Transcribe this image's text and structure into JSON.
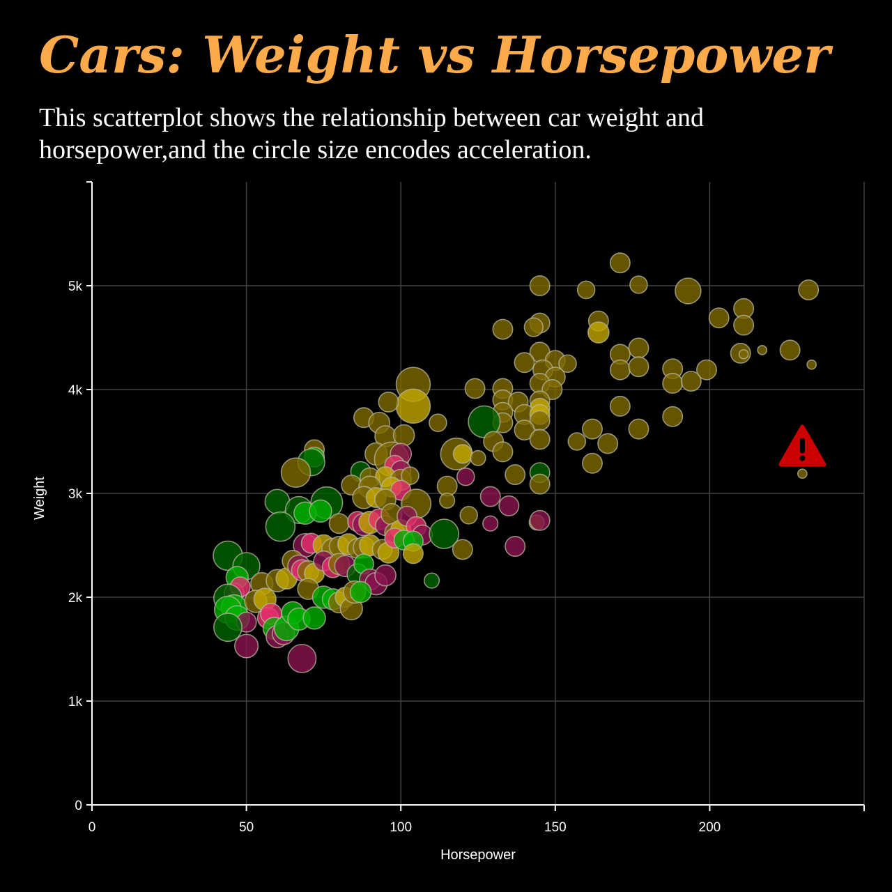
{
  "chart_data": {
    "type": "scatter",
    "title": "Cars: Weight vs Horsepower",
    "subtitle": "This scatterplot shows the relationship between car weight and horsepower,and the circle size encodes acceleration.",
    "xlabel": "Horsepower",
    "ylabel": "Weight",
    "xlim": [
      0,
      250
    ],
    "ylim": [
      0,
      6000
    ],
    "x_ticks": [
      {
        "v": 0,
        "label": "0"
      },
      {
        "v": 50,
        "label": "50"
      },
      {
        "v": 100,
        "label": "100"
      },
      {
        "v": 150,
        "label": "150"
      },
      {
        "v": 200,
        "label": "200"
      }
    ],
    "y_ticks": [
      {
        "v": 0,
        "label": "0"
      },
      {
        "v": 1000,
        "label": "1k"
      },
      {
        "v": 2000,
        "label": "2k"
      },
      {
        "v": 3000,
        "label": "3k"
      },
      {
        "v": 4000,
        "label": "4k"
      },
      {
        "v": 5000,
        "label": "5k"
      }
    ],
    "grid": true,
    "size_encoding": "acceleration",
    "colors": {
      "olive": "#806a00",
      "gold": "#c4a800",
      "darkgreen": "#006400",
      "green": "#00b000",
      "maroon": "#8b1450",
      "pink": "#e8306e",
      "stroke": "#b8b8a0",
      "warning": "#cc0000"
    },
    "points": [
      {
        "x": 171,
        "y": 5220,
        "a": 12,
        "c": "olive"
      },
      {
        "x": 145,
        "y": 5000,
        "a": 12,
        "c": "olive"
      },
      {
        "x": 160,
        "y": 4960,
        "a": 10,
        "c": "olive"
      },
      {
        "x": 177,
        "y": 5010,
        "a": 10,
        "c": "olive"
      },
      {
        "x": 193,
        "y": 4950,
        "a": 17,
        "c": "olive"
      },
      {
        "x": 232,
        "y": 4960,
        "a": 12,
        "c": "olive"
      },
      {
        "x": 211,
        "y": 4780,
        "a": 12,
        "c": "olive"
      },
      {
        "x": 203,
        "y": 4690,
        "a": 12,
        "c": "olive"
      },
      {
        "x": 211,
        "y": 4620,
        "a": 12,
        "c": "olive"
      },
      {
        "x": 164,
        "y": 4660,
        "a": 12,
        "c": "olive"
      },
      {
        "x": 145,
        "y": 4640,
        "a": 12,
        "c": "olive"
      },
      {
        "x": 143,
        "y": 4600,
        "a": 11,
        "c": "olive"
      },
      {
        "x": 133,
        "y": 4580,
        "a": 12,
        "c": "olive"
      },
      {
        "x": 164,
        "y": 4550,
        "a": 13,
        "c": "gold"
      },
      {
        "x": 177,
        "y": 4400,
        "a": 12,
        "c": "olive"
      },
      {
        "x": 171,
        "y": 4340,
        "a": 12,
        "c": "olive"
      },
      {
        "x": 210,
        "y": 4350,
        "a": 12,
        "c": "olive"
      },
      {
        "x": 226,
        "y": 4380,
        "a": 12,
        "c": "olive"
      },
      {
        "x": 211,
        "y": 4340,
        "a": 3,
        "c": "olive"
      },
      {
        "x": 217,
        "y": 4380,
        "a": 3,
        "c": "olive"
      },
      {
        "x": 233,
        "y": 4240,
        "a": 3,
        "c": "olive"
      },
      {
        "x": 145,
        "y": 4360,
        "a": 12,
        "c": "olive"
      },
      {
        "x": 150,
        "y": 4280,
        "a": 12,
        "c": "olive"
      },
      {
        "x": 154,
        "y": 4250,
        "a": 10,
        "c": "olive"
      },
      {
        "x": 140,
        "y": 4260,
        "a": 12,
        "c": "olive"
      },
      {
        "x": 171,
        "y": 4190,
        "a": 12,
        "c": "olive"
      },
      {
        "x": 177,
        "y": 4220,
        "a": 12,
        "c": "olive"
      },
      {
        "x": 188,
        "y": 4200,
        "a": 12,
        "c": "olive"
      },
      {
        "x": 199,
        "y": 4190,
        "a": 12,
        "c": "olive"
      },
      {
        "x": 146,
        "y": 4190,
        "a": 12,
        "c": "olive"
      },
      {
        "x": 150,
        "y": 4120,
        "a": 12,
        "c": "olive"
      },
      {
        "x": 145,
        "y": 4060,
        "a": 12,
        "c": "olive"
      },
      {
        "x": 149,
        "y": 4000,
        "a": 12,
        "c": "olive"
      },
      {
        "x": 188,
        "y": 4060,
        "a": 12,
        "c": "olive"
      },
      {
        "x": 194,
        "y": 4080,
        "a": 12,
        "c": "olive"
      },
      {
        "x": 124,
        "y": 4010,
        "a": 12,
        "c": "olive"
      },
      {
        "x": 133,
        "y": 4010,
        "a": 12,
        "c": "olive"
      },
      {
        "x": 104,
        "y": 4050,
        "a": 24,
        "c": "olive"
      },
      {
        "x": 104,
        "y": 3840,
        "a": 24,
        "c": "gold"
      },
      {
        "x": 96,
        "y": 3880,
        "a": 12,
        "c": "olive"
      },
      {
        "x": 133,
        "y": 3900,
        "a": 12,
        "c": "olive"
      },
      {
        "x": 138,
        "y": 3880,
        "a": 12,
        "c": "olive"
      },
      {
        "x": 145,
        "y": 3890,
        "a": 12,
        "c": "olive"
      },
      {
        "x": 145,
        "y": 3820,
        "a": 12,
        "c": "gold"
      },
      {
        "x": 133,
        "y": 3780,
        "a": 12,
        "c": "olive"
      },
      {
        "x": 140,
        "y": 3760,
        "a": 12,
        "c": "olive"
      },
      {
        "x": 145,
        "y": 3760,
        "a": 12,
        "c": "gold"
      },
      {
        "x": 171,
        "y": 3840,
        "a": 12,
        "c": "olive"
      },
      {
        "x": 145,
        "y": 3700,
        "a": 12,
        "c": "olive"
      },
      {
        "x": 140,
        "y": 3610,
        "a": 12,
        "c": "olive"
      },
      {
        "x": 133,
        "y": 3680,
        "a": 12,
        "c": "olive"
      },
      {
        "x": 127,
        "y": 3690,
        "a": 22,
        "c": "darkgreen"
      },
      {
        "x": 112,
        "y": 3680,
        "a": 10,
        "c": "olive"
      },
      {
        "x": 88,
        "y": 3730,
        "a": 12,
        "c": "olive"
      },
      {
        "x": 93,
        "y": 3680,
        "a": 13,
        "c": "olive"
      },
      {
        "x": 95,
        "y": 3550,
        "a": 13,
        "c": "olive"
      },
      {
        "x": 101,
        "y": 3560,
        "a": 13,
        "c": "olive"
      },
      {
        "x": 177,
        "y": 3620,
        "a": 12,
        "c": "olive"
      },
      {
        "x": 188,
        "y": 3740,
        "a": 12,
        "c": "olive"
      },
      {
        "x": 162,
        "y": 3620,
        "a": 12,
        "c": "olive"
      },
      {
        "x": 157,
        "y": 3500,
        "a": 10,
        "c": "olive"
      },
      {
        "x": 167,
        "y": 3480,
        "a": 12,
        "c": "olive"
      },
      {
        "x": 145,
        "y": 3520,
        "a": 12,
        "c": "olive"
      },
      {
        "x": 130,
        "y": 3500,
        "a": 12,
        "c": "olive"
      },
      {
        "x": 133,
        "y": 3400,
        "a": 12,
        "c": "olive"
      },
      {
        "x": 118,
        "y": 3380,
        "a": 22,
        "c": "olive"
      },
      {
        "x": 120,
        "y": 3380,
        "a": 11,
        "c": "gold"
      },
      {
        "x": 125,
        "y": 3340,
        "a": 8,
        "c": "olive"
      },
      {
        "x": 162,
        "y": 3290,
        "a": 12,
        "c": "olive"
      },
      {
        "x": 72,
        "y": 3420,
        "a": 12,
        "c": "olive"
      },
      {
        "x": 72,
        "y": 3350,
        "a": 12,
        "c": "green"
      },
      {
        "x": 71,
        "y": 3300,
        "a": 18,
        "c": "darkgreen"
      },
      {
        "x": 66,
        "y": 3200,
        "a": 20,
        "c": "olive"
      },
      {
        "x": 92,
        "y": 3380,
        "a": 14,
        "c": "olive"
      },
      {
        "x": 97,
        "y": 3330,
        "a": 24,
        "c": "olive"
      },
      {
        "x": 100,
        "y": 3380,
        "a": 13,
        "c": "maroon"
      },
      {
        "x": 98,
        "y": 3270,
        "a": 12,
        "c": "pink"
      },
      {
        "x": 100,
        "y": 3220,
        "a": 12,
        "c": "maroon"
      },
      {
        "x": 87,
        "y": 3210,
        "a": 12,
        "c": "darkgreen"
      },
      {
        "x": 90,
        "y": 3150,
        "a": 12,
        "c": "olive"
      },
      {
        "x": 95,
        "y": 3160,
        "a": 12,
        "c": "gold"
      },
      {
        "x": 100,
        "y": 3130,
        "a": 13,
        "c": "olive"
      },
      {
        "x": 103,
        "y": 3170,
        "a": 10,
        "c": "olive"
      },
      {
        "x": 137,
        "y": 3180,
        "a": 12,
        "c": "olive"
      },
      {
        "x": 145,
        "y": 3200,
        "a": 12,
        "c": "darkgreen"
      },
      {
        "x": 145,
        "y": 3090,
        "a": 12,
        "c": "olive"
      },
      {
        "x": 115,
        "y": 3070,
        "a": 12,
        "c": "olive"
      },
      {
        "x": 121,
        "y": 3160,
        "a": 10,
        "c": "maroon"
      },
      {
        "x": 84,
        "y": 3080,
        "a": 12,
        "c": "olive"
      },
      {
        "x": 90,
        "y": 3060,
        "a": 14,
        "c": "olive"
      },
      {
        "x": 97,
        "y": 3060,
        "a": 12,
        "c": "gold"
      },
      {
        "x": 100,
        "y": 3030,
        "a": 12,
        "c": "pink"
      },
      {
        "x": 88,
        "y": 2960,
        "a": 14,
        "c": "olive"
      },
      {
        "x": 92,
        "y": 2960,
        "a": 12,
        "c": "gold"
      },
      {
        "x": 95,
        "y": 2940,
        "a": 13,
        "c": "olive"
      },
      {
        "x": 105,
        "y": 2900,
        "a": 20,
        "c": "olive"
      },
      {
        "x": 115,
        "y": 2930,
        "a": 8,
        "c": "olive"
      },
      {
        "x": 129,
        "y": 2970,
        "a": 12,
        "c": "maroon"
      },
      {
        "x": 135,
        "y": 2880,
        "a": 12,
        "c": "maroon"
      },
      {
        "x": 76,
        "y": 2910,
        "a": 22,
        "c": "darkgreen"
      },
      {
        "x": 60,
        "y": 2920,
        "a": 16,
        "c": "darkgreen"
      },
      {
        "x": 67,
        "y": 2840,
        "a": 18,
        "c": "darkgreen"
      },
      {
        "x": 69,
        "y": 2810,
        "a": 14,
        "c": "green"
      },
      {
        "x": 74,
        "y": 2830,
        "a": 14,
        "c": "green"
      },
      {
        "x": 61,
        "y": 2680,
        "a": 20,
        "c": "darkgreen"
      },
      {
        "x": 80,
        "y": 2710,
        "a": 12,
        "c": "olive"
      },
      {
        "x": 86,
        "y": 2730,
        "a": 12,
        "c": "pink"
      },
      {
        "x": 88,
        "y": 2700,
        "a": 14,
        "c": "maroon"
      },
      {
        "x": 90,
        "y": 2720,
        "a": 14,
        "c": "gold"
      },
      {
        "x": 93,
        "y": 2750,
        "a": 13,
        "c": "pink"
      },
      {
        "x": 95,
        "y": 2690,
        "a": 12,
        "c": "maroon"
      },
      {
        "x": 97,
        "y": 2800,
        "a": 13,
        "c": "olive"
      },
      {
        "x": 98,
        "y": 2620,
        "a": 12,
        "c": "olive"
      },
      {
        "x": 100,
        "y": 2650,
        "a": 12,
        "c": "gold"
      },
      {
        "x": 102,
        "y": 2780,
        "a": 12,
        "c": "maroon"
      },
      {
        "x": 105,
        "y": 2680,
        "a": 12,
        "c": "pink"
      },
      {
        "x": 107,
        "y": 2600,
        "a": 12,
        "c": "maroon"
      },
      {
        "x": 114,
        "y": 2610,
        "a": 20,
        "c": "darkgreen"
      },
      {
        "x": 122,
        "y": 2790,
        "a": 10,
        "c": "olive"
      },
      {
        "x": 129,
        "y": 2710,
        "a": 8,
        "c": "maroon"
      },
      {
        "x": 144,
        "y": 2720,
        "a": 8,
        "c": "olive"
      },
      {
        "x": 145,
        "y": 2740,
        "a": 12,
        "c": "maroon"
      },
      {
        "x": 69,
        "y": 2500,
        "a": 15,
        "c": "maroon"
      },
      {
        "x": 71,
        "y": 2520,
        "a": 12,
        "c": "pink"
      },
      {
        "x": 75,
        "y": 2500,
        "a": 13,
        "c": "gold"
      },
      {
        "x": 78,
        "y": 2460,
        "a": 14,
        "c": "olive"
      },
      {
        "x": 80,
        "y": 2490,
        "a": 12,
        "c": "olive"
      },
      {
        "x": 83,
        "y": 2510,
        "a": 13,
        "c": "gold"
      },
      {
        "x": 86,
        "y": 2470,
        "a": 12,
        "c": "olive"
      },
      {
        "x": 88,
        "y": 2480,
        "a": 13,
        "c": "olive"
      },
      {
        "x": 90,
        "y": 2500,
        "a": 13,
        "c": "gold"
      },
      {
        "x": 94,
        "y": 2460,
        "a": 12,
        "c": "olive"
      },
      {
        "x": 96,
        "y": 2430,
        "a": 13,
        "c": "gold"
      },
      {
        "x": 98,
        "y": 2570,
        "a": 12,
        "c": "pink"
      },
      {
        "x": 101,
        "y": 2550,
        "a": 12,
        "c": "green"
      },
      {
        "x": 104,
        "y": 2540,
        "a": 12,
        "c": "green"
      },
      {
        "x": 104,
        "y": 2420,
        "a": 12,
        "c": "gold"
      },
      {
        "x": 120,
        "y": 2460,
        "a": 12,
        "c": "olive"
      },
      {
        "x": 137,
        "y": 2490,
        "a": 12,
        "c": "maroon"
      },
      {
        "x": 44,
        "y": 2400,
        "a": 20,
        "c": "darkgreen"
      },
      {
        "x": 50,
        "y": 2300,
        "a": 18,
        "c": "darkgreen"
      },
      {
        "x": 47,
        "y": 2190,
        "a": 14,
        "c": "green"
      },
      {
        "x": 55,
        "y": 2130,
        "a": 14,
        "c": "olive"
      },
      {
        "x": 60,
        "y": 2160,
        "a": 14,
        "c": "olive"
      },
      {
        "x": 63,
        "y": 2180,
        "a": 13,
        "c": "gold"
      },
      {
        "x": 65,
        "y": 2350,
        "a": 13,
        "c": "olive"
      },
      {
        "x": 67,
        "y": 2300,
        "a": 14,
        "c": "maroon"
      },
      {
        "x": 68,
        "y": 2260,
        "a": 13,
        "c": "pink"
      },
      {
        "x": 70,
        "y": 2250,
        "a": 13,
        "c": "olive"
      },
      {
        "x": 72,
        "y": 2230,
        "a": 12,
        "c": "gold"
      },
      {
        "x": 75,
        "y": 2350,
        "a": 12,
        "c": "maroon"
      },
      {
        "x": 78,
        "y": 2290,
        "a": 13,
        "c": "pink"
      },
      {
        "x": 80,
        "y": 2320,
        "a": 13,
        "c": "olive"
      },
      {
        "x": 82,
        "y": 2300,
        "a": 13,
        "c": "maroon"
      },
      {
        "x": 86,
        "y": 2220,
        "a": 13,
        "c": "darkgreen"
      },
      {
        "x": 88,
        "y": 2320,
        "a": 12,
        "c": "green"
      },
      {
        "x": 90,
        "y": 2170,
        "a": 13,
        "c": "maroon"
      },
      {
        "x": 92,
        "y": 2130,
        "a": 14,
        "c": "maroon"
      },
      {
        "x": 95,
        "y": 2210,
        "a": 13,
        "c": "maroon"
      },
      {
        "x": 110,
        "y": 2160,
        "a": 8,
        "c": "darkgreen"
      },
      {
        "x": 46,
        "y": 2040,
        "a": 12,
        "c": "maroon"
      },
      {
        "x": 48,
        "y": 2100,
        "a": 12,
        "c": "pink"
      },
      {
        "x": 44,
        "y": 1990,
        "a": 19,
        "c": "darkgreen"
      },
      {
        "x": 46,
        "y": 1900,
        "a": 17,
        "c": "green"
      },
      {
        "x": 44,
        "y": 1880,
        "a": 18,
        "c": "green"
      },
      {
        "x": 47,
        "y": 1800,
        "a": 16,
        "c": "green"
      },
      {
        "x": 50,
        "y": 1760,
        "a": 12,
        "c": "maroon"
      },
      {
        "x": 44,
        "y": 1710,
        "a": 19,
        "c": "darkgreen"
      },
      {
        "x": 53,
        "y": 1960,
        "a": 14,
        "c": "olive"
      },
      {
        "x": 56,
        "y": 1980,
        "a": 14,
        "c": "gold"
      },
      {
        "x": 57,
        "y": 1800,
        "a": 13,
        "c": "pink"
      },
      {
        "x": 58,
        "y": 1840,
        "a": 13,
        "c": "pink"
      },
      {
        "x": 59,
        "y": 1700,
        "a": 14,
        "c": "green"
      },
      {
        "x": 60,
        "y": 1620,
        "a": 14,
        "c": "maroon"
      },
      {
        "x": 62,
        "y": 1650,
        "a": 14,
        "c": "maroon"
      },
      {
        "x": 63,
        "y": 1700,
        "a": 16,
        "c": "green"
      },
      {
        "x": 65,
        "y": 1850,
        "a": 14,
        "c": "green"
      },
      {
        "x": 67,
        "y": 1790,
        "a": 14,
        "c": "green"
      },
      {
        "x": 70,
        "y": 2080,
        "a": 13,
        "c": "olive"
      },
      {
        "x": 72,
        "y": 1800,
        "a": 14,
        "c": "green"
      },
      {
        "x": 75,
        "y": 2000,
        "a": 14,
        "c": "green"
      },
      {
        "x": 78,
        "y": 1980,
        "a": 13,
        "c": "green"
      },
      {
        "x": 80,
        "y": 1950,
        "a": 13,
        "c": "olive"
      },
      {
        "x": 82,
        "y": 2000,
        "a": 12,
        "c": "gold"
      },
      {
        "x": 84,
        "y": 1890,
        "a": 14,
        "c": "olive"
      },
      {
        "x": 85,
        "y": 2050,
        "a": 14,
        "c": "olive"
      },
      {
        "x": 87,
        "y": 2050,
        "a": 13,
        "c": "green"
      },
      {
        "x": 50,
        "y": 1530,
        "a": 15,
        "c": "maroon"
      },
      {
        "x": 68,
        "y": 1410,
        "a": 19,
        "c": "maroon"
      },
      {
        "x": 230,
        "y": 3190,
        "a": 3,
        "c": "olive"
      }
    ],
    "warning": {
      "x": 230,
      "y": 3440,
      "icon": "warning-icon"
    }
  }
}
